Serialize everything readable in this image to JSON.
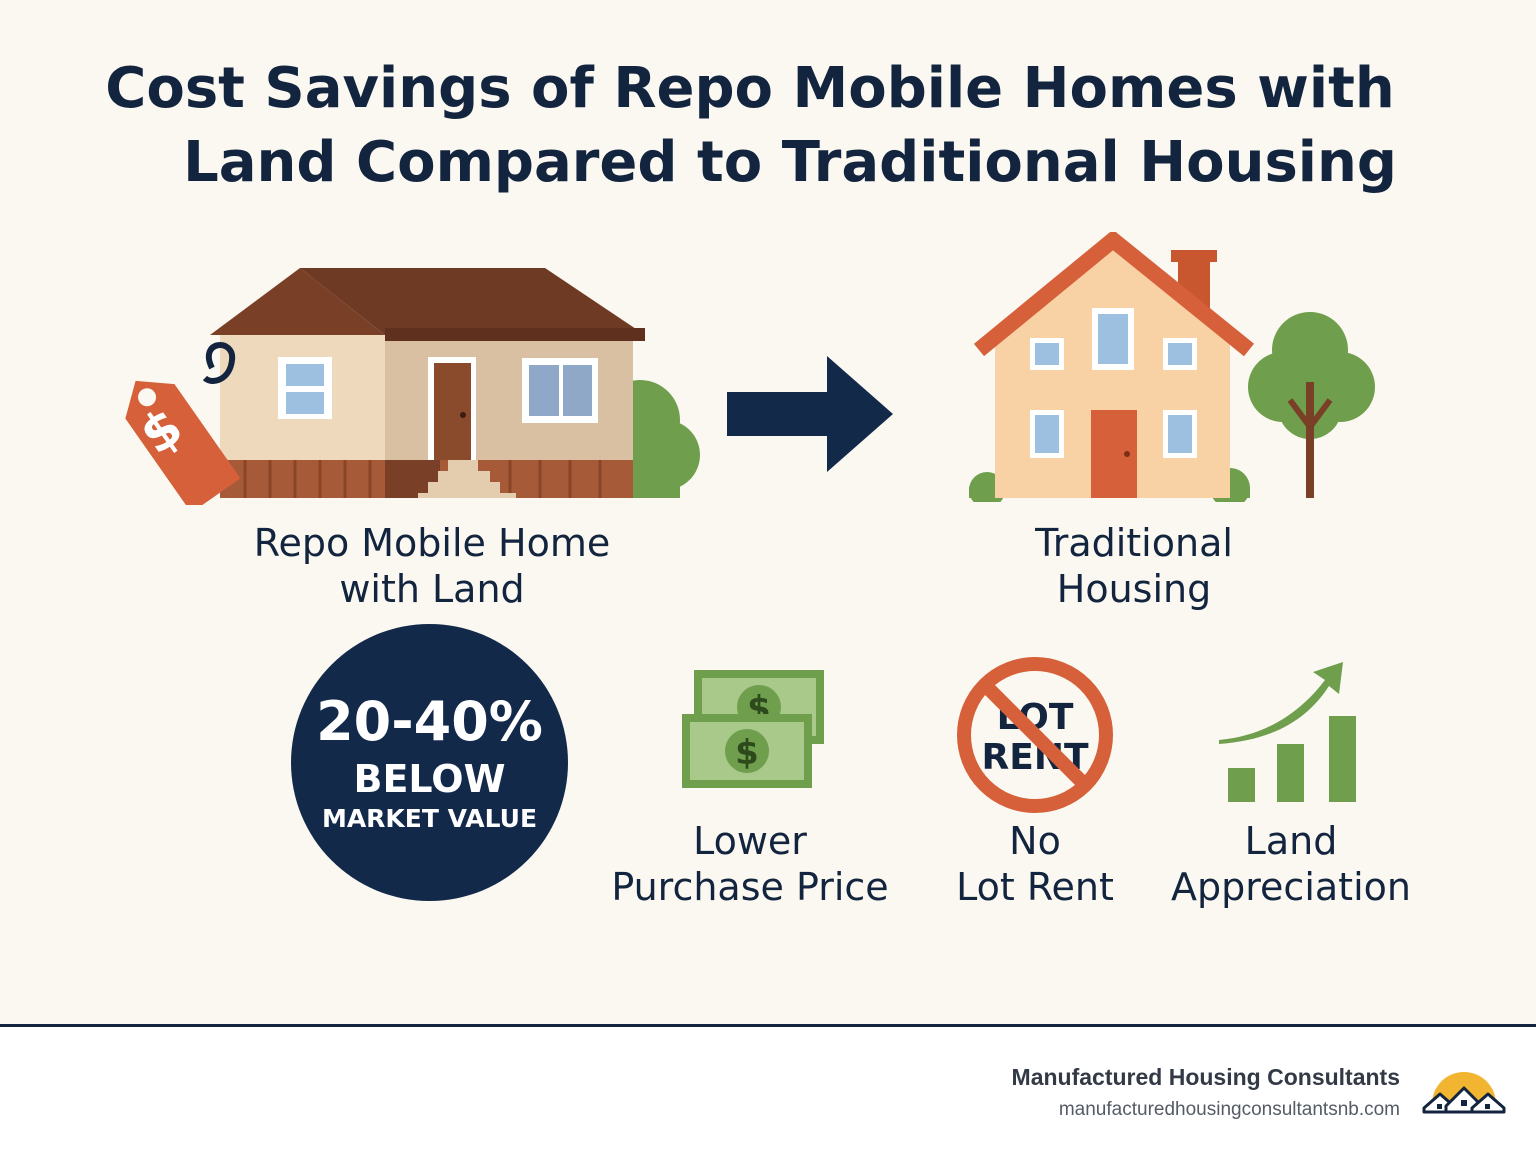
{
  "title": {
    "line1": "Cost Savings of Repo Mobile Homes with",
    "line2": "Land Compared to Traditional Housing"
  },
  "comparison": {
    "left_label": {
      "line1": "Repo Mobile Home",
      "line2": "with Land"
    },
    "right_label": {
      "line1": "Traditional",
      "line2": "Housing"
    },
    "price_tag_symbol": "$"
  },
  "badge": {
    "percent": "20-40%",
    "below": "BELOW",
    "market_value": "MARKET VALUE"
  },
  "benefits": [
    {
      "icon": "cash-icon",
      "line1": "Lower",
      "line2": "Purchase Price",
      "bill_symbol": "$"
    },
    {
      "icon": "no-lot-rent-icon",
      "line1": "No",
      "line2": "Lot Rent",
      "sign_line1": "LOT",
      "sign_line2": "RENT"
    },
    {
      "icon": "growth-chart-icon",
      "line1": "Land",
      "line2": "Appreciation"
    }
  ],
  "footer": {
    "company": "Manufactured Housing Consultants",
    "website": "manufacturedhousingconsultantsnb.com"
  },
  "colors": {
    "navy": "#13294a",
    "orange": "#d6603a",
    "green": "#6f9e4c",
    "background": "#faf8f1"
  }
}
